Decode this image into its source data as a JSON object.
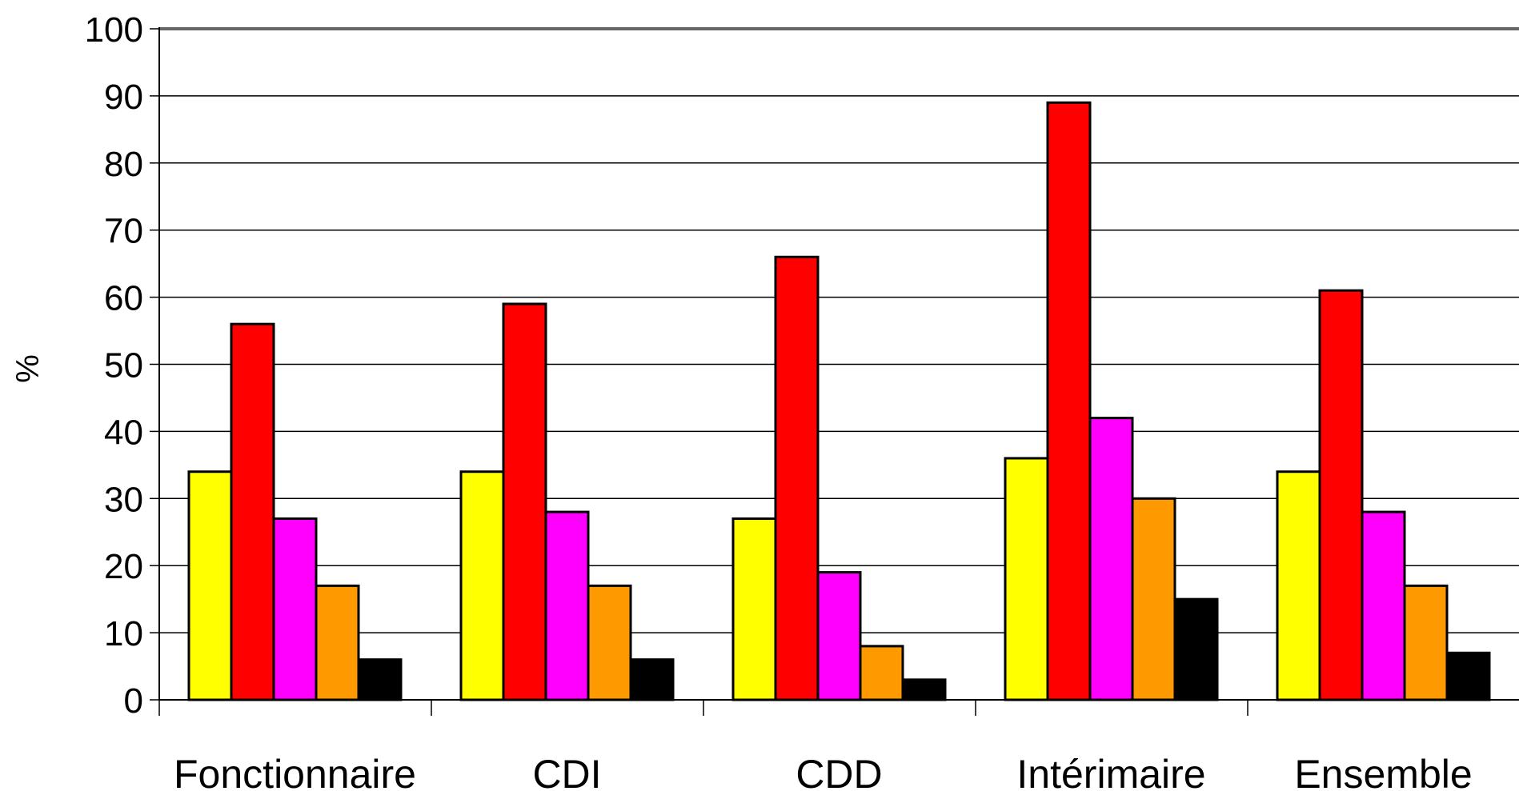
{
  "chart_data": {
    "type": "bar",
    "ylabel": "%",
    "ylim": [
      0,
      100
    ],
    "yticks": [
      "0",
      "10",
      "20",
      "30",
      "40",
      "50",
      "60",
      "70",
      "80",
      "90",
      "100"
    ],
    "grid": true,
    "legend": "none",
    "categories": [
      "Fonctionnaire",
      "CDI",
      "CDD",
      "Intérimaire",
      "Ensemble"
    ],
    "series": [
      {
        "color": "#ffff00",
        "values": [
          34,
          34,
          27,
          36,
          34
        ]
      },
      {
        "color": "#ff0000",
        "values": [
          56,
          59,
          66,
          89,
          61
        ]
      },
      {
        "color": "#ff00ff",
        "values": [
          27,
          28,
          19,
          42,
          28
        ]
      },
      {
        "color": "#ff9900",
        "values": [
          17,
          17,
          8,
          30,
          17
        ]
      },
      {
        "color": "#000000",
        "values": [
          6,
          6,
          3,
          15,
          7
        ]
      }
    ]
  }
}
